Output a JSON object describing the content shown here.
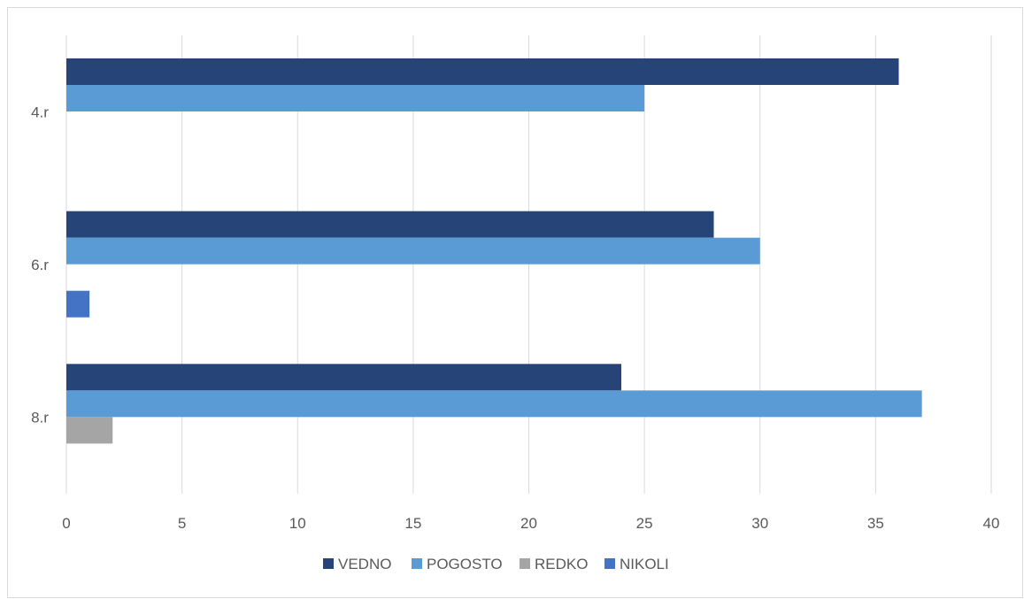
{
  "chart_data": {
    "type": "bar",
    "orientation": "horizontal",
    "categories": [
      "4.r",
      "6.r",
      "8.r"
    ],
    "series": [
      {
        "name": "VEDNO",
        "color": "#264478",
        "values": [
          36,
          28,
          24
        ]
      },
      {
        "name": "POGOSTO",
        "color": "#5b9bd5",
        "values": [
          25,
          30,
          37
        ]
      },
      {
        "name": "REDKO",
        "color": "#a5a5a5",
        "values": [
          0,
          0,
          2
        ]
      },
      {
        "name": "NIKOLI",
        "color": "#4472c4",
        "values": [
          0,
          1,
          0
        ]
      }
    ],
    "xlim": [
      0,
      40
    ],
    "xticks": [
      "0",
      "5",
      "10",
      "15",
      "20",
      "25",
      "30",
      "35",
      "40"
    ],
    "grid": true,
    "legend_position": "bottom"
  }
}
